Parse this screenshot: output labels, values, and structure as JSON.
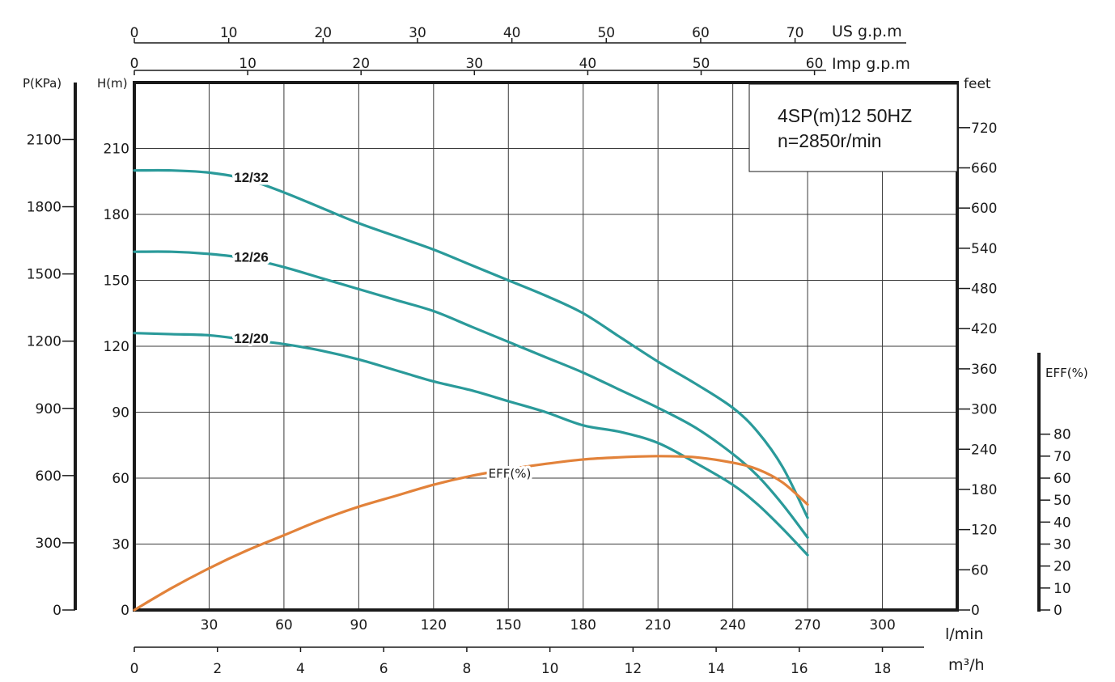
{
  "chart_data": {
    "type": "line",
    "title": "4SP(m)12  50HZ",
    "subtitle": "n=2850r/min",
    "x_flow_lmin": {
      "label": "l/min",
      "ticks": [
        "30",
        "60",
        "90",
        "120",
        "150",
        "180",
        "210",
        "240",
        "270",
        "300"
      ],
      "range": [
        0,
        330
      ]
    },
    "x_flow_m3h": {
      "label": "m³/h",
      "ticks": [
        "0",
        "2",
        "4",
        "6",
        "8",
        "10",
        "12",
        "14",
        "16",
        "18"
      ]
    },
    "x_us_gpm": {
      "label": "US g.p.m",
      "ticks": [
        "0",
        "10",
        "20",
        "30",
        "40",
        "50",
        "60",
        "70"
      ]
    },
    "x_imp_gpm": {
      "label": "Imp g.p.m",
      "ticks": [
        "0",
        "10",
        "20",
        "30",
        "40",
        "50",
        "60"
      ]
    },
    "y_head_m": {
      "label": "H(m)",
      "ticks": [
        "0",
        "30",
        "60",
        "90",
        "120",
        "150",
        "180",
        "210"
      ],
      "range": [
        0,
        240
      ]
    },
    "y_pressure_kpa": {
      "label": "P(KPa)",
      "ticks": [
        "0",
        "300",
        "600",
        "900",
        "1200",
        "1500",
        "1800",
        "2100"
      ]
    },
    "y_head_feet": {
      "label": "feet",
      "ticks": [
        "0",
        "60",
        "120",
        "180",
        "240",
        "300",
        "360",
        "420",
        "480",
        "540",
        "600",
        "660",
        "720"
      ]
    },
    "y_eff": {
      "label": "EFF(%)",
      "ticks": [
        "0",
        "10",
        "20",
        "30",
        "40",
        "50",
        "60",
        "70",
        "80"
      ]
    },
    "grid": true,
    "series": [
      {
        "name": "12/32",
        "color": "#2a9a9a",
        "x": [
          0,
          15,
          30,
          45,
          60,
          75,
          90,
          105,
          120,
          135,
          150,
          165,
          180,
          195,
          210,
          225,
          240,
          250,
          260,
          270
        ],
        "y": [
          200,
          200,
          199,
          196,
          190,
          183,
          176,
          170,
          164,
          157,
          150,
          143,
          135,
          124,
          113,
          103,
          92,
          81,
          65,
          42
        ]
      },
      {
        "name": "12/26",
        "color": "#2a9a9a",
        "x": [
          0,
          15,
          30,
          45,
          60,
          75,
          90,
          105,
          120,
          135,
          150,
          165,
          180,
          195,
          210,
          225,
          240,
          250,
          260,
          270
        ],
        "y": [
          163,
          163,
          162,
          160,
          156,
          151,
          146,
          141,
          136,
          129,
          122,
          115,
          108,
          100,
          92,
          83,
          71,
          61,
          48,
          33
        ]
      },
      {
        "name": "12/20",
        "color": "#2a9a9a",
        "x": [
          0,
          15,
          30,
          45,
          60,
          75,
          90,
          105,
          120,
          135,
          150,
          165,
          180,
          195,
          210,
          225,
          240,
          250,
          260,
          270
        ],
        "y": [
          126,
          125.5,
          125,
          123,
          121,
          118,
          114,
          109,
          104,
          100,
          95,
          90,
          84,
          81,
          76,
          67,
          57,
          48,
          37,
          25
        ]
      },
      {
        "name": "EFF(%)",
        "color": "#e2823a",
        "x": [
          0,
          15,
          30,
          45,
          60,
          75,
          90,
          105,
          120,
          135,
          150,
          165,
          180,
          195,
          210,
          225,
          240,
          250,
          260,
          270
        ],
        "y": [
          0,
          10,
          19,
          27,
          34,
          41,
          47,
          52,
          57,
          61,
          64,
          66.5,
          68.5,
          69.5,
          70,
          69.5,
          67,
          64,
          58,
          48
        ]
      }
    ]
  }
}
